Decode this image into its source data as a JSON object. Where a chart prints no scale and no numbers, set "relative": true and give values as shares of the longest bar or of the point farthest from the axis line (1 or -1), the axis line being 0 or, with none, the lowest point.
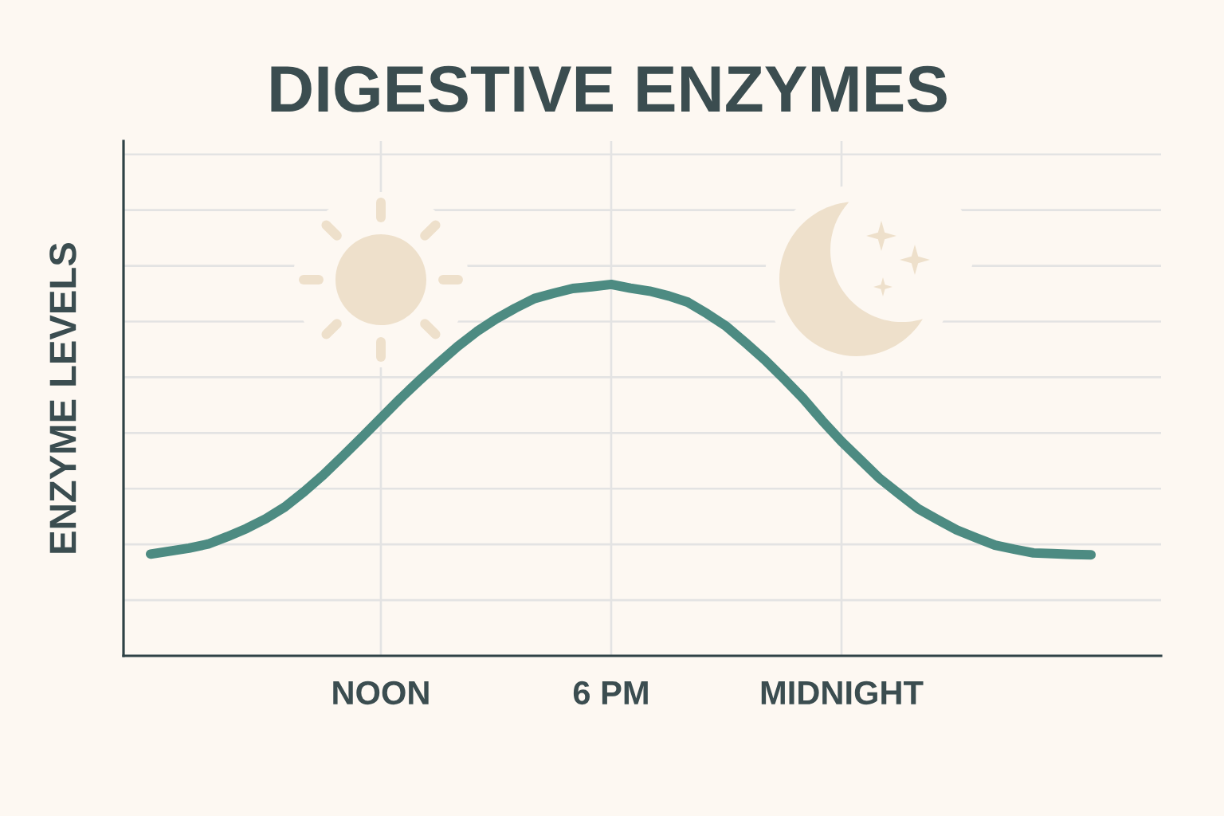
{
  "chart_data": {
    "type": "line",
    "title": "DIGESTIVE ENZYMES",
    "ylabel": "ENZYME LEVELS",
    "relative": true,
    "categories": [
      null,
      null,
      null,
      null,
      null,
      null,
      null,
      null,
      null,
      null,
      null,
      null,
      "NOON",
      null,
      null,
      null,
      null,
      null,
      null,
      null,
      null,
      null,
      null,
      null,
      "6 PM",
      null,
      null,
      null,
      null,
      null,
      null,
      null,
      null,
      null,
      null,
      null,
      "MIDNIGHT",
      null,
      null,
      null,
      null,
      null,
      null,
      null,
      null,
      null,
      null,
      null,
      null,
      null
    ],
    "series": [
      {
        "color": "#4d8b82",
        "values": [
          0.274,
          0.282,
          0.29,
          0.301,
          0.321,
          0.343,
          0.369,
          0.401,
          0.442,
          0.487,
          0.537,
          0.588,
          0.64,
          0.692,
          0.741,
          0.788,
          0.833,
          0.873,
          0.907,
          0.936,
          0.962,
          0.976,
          0.989,
          0.994,
          1.0,
          0.99,
          0.982,
          0.969,
          0.952,
          0.921,
          0.887,
          0.843,
          0.797,
          0.746,
          0.693,
          0.633,
          0.577,
          0.527,
          0.477,
          0.436,
          0.396,
          0.367,
          0.339,
          0.318,
          0.298,
          0.287,
          0.277,
          0.275,
          0.273,
          0.272
        ]
      }
    ],
    "grid": true,
    "line_style": "solid",
    "tick_labels": "x"
  }
}
